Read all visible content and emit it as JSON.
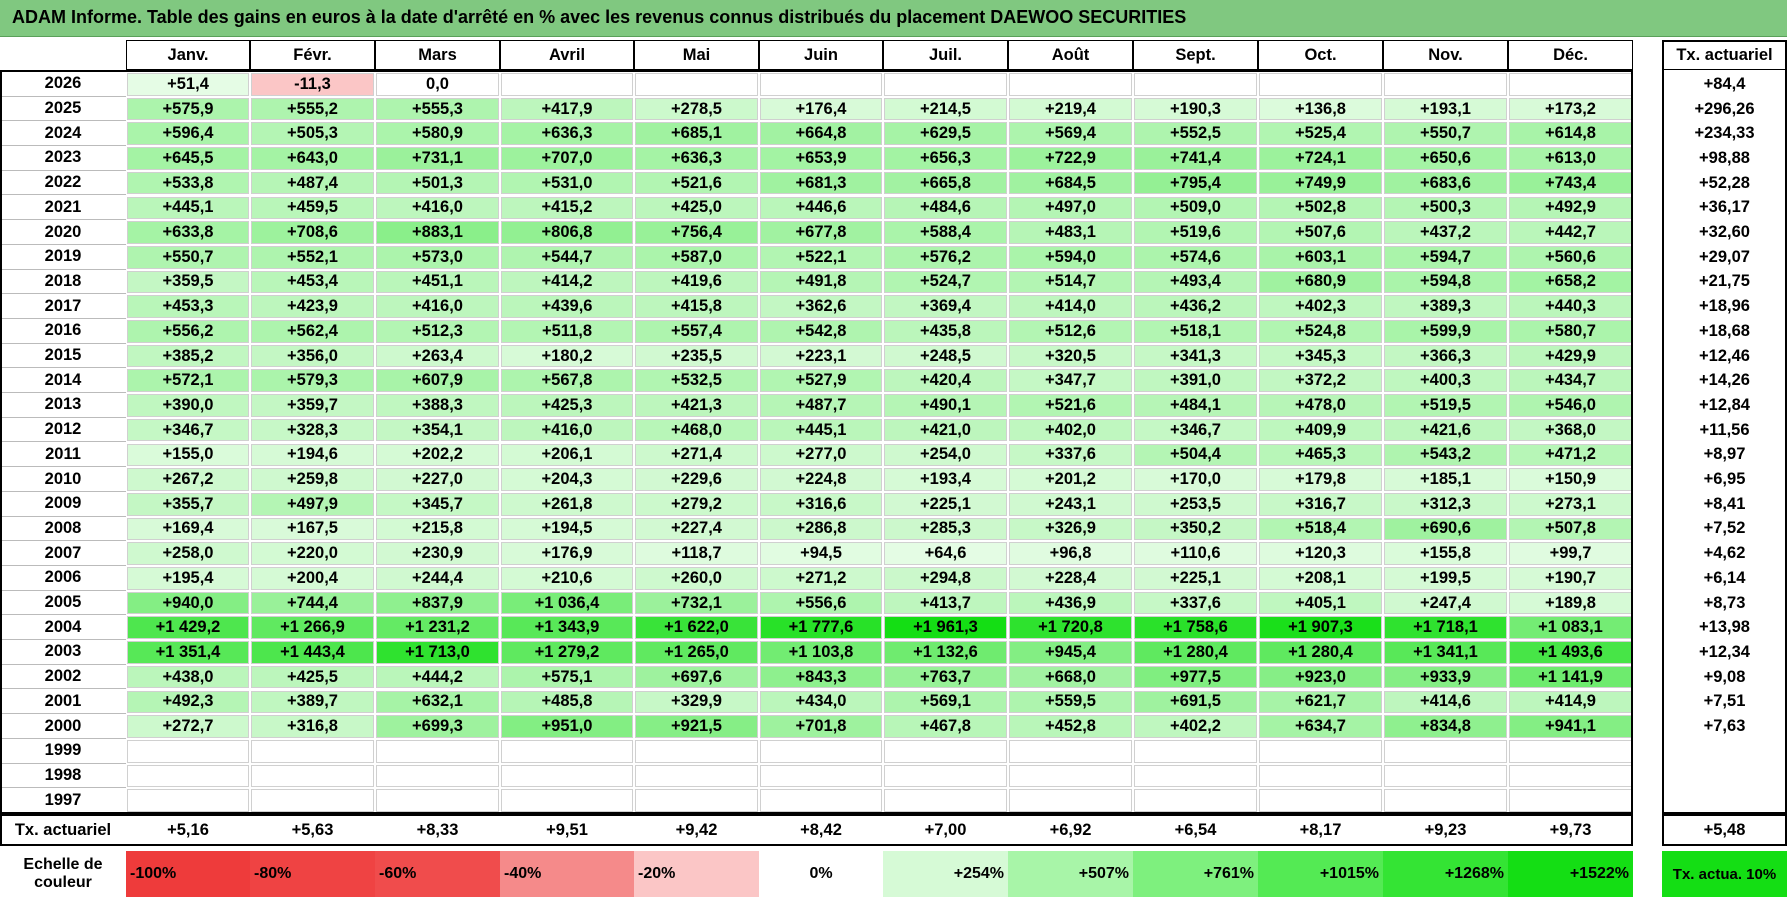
{
  "title": "ADAM Informe. Table des gains en euros à la date d'arrêté en % avec les revenus connus distribués du placement DAEWOO SECURITIES",
  "months": [
    "Janv.",
    "Févr.",
    "Mars",
    "Avril",
    "Mai",
    "Juin",
    "Juil.",
    "Août",
    "Sept.",
    "Oct.",
    "Nov.",
    "Déc."
  ],
  "tx_header": "Tx. actuariel",
  "rows": [
    {
      "year": "2026",
      "values": [
        "+51,4",
        "-11,3",
        "0,0",
        "",
        "",
        "",
        "",
        "",
        "",
        "",
        "",
        ""
      ],
      "tx": "+84,4"
    },
    {
      "year": "2025",
      "values": [
        "+575,9",
        "+555,2",
        "+555,3",
        "+417,9",
        "+278,5",
        "+176,4",
        "+214,5",
        "+219,4",
        "+190,3",
        "+136,8",
        "+193,1",
        "+173,2"
      ],
      "tx": "+296,26"
    },
    {
      "year": "2024",
      "values": [
        "+596,4",
        "+505,3",
        "+580,9",
        "+636,3",
        "+685,1",
        "+664,8",
        "+629,5",
        "+569,4",
        "+552,5",
        "+525,4",
        "+550,7",
        "+614,8"
      ],
      "tx": "+234,33"
    },
    {
      "year": "2023",
      "values": [
        "+645,5",
        "+643,0",
        "+731,1",
        "+707,0",
        "+636,3",
        "+653,9",
        "+656,3",
        "+722,9",
        "+741,4",
        "+724,1",
        "+650,6",
        "+613,0"
      ],
      "tx": "+98,88"
    },
    {
      "year": "2022",
      "values": [
        "+533,8",
        "+487,4",
        "+501,3",
        "+531,0",
        "+521,6",
        "+681,3",
        "+665,8",
        "+684,5",
        "+795,4",
        "+749,9",
        "+683,6",
        "+743,4"
      ],
      "tx": "+52,28"
    },
    {
      "year": "2021",
      "values": [
        "+445,1",
        "+459,5",
        "+416,0",
        "+415,2",
        "+425,0",
        "+446,6",
        "+484,6",
        "+497,0",
        "+509,0",
        "+502,8",
        "+500,3",
        "+492,9"
      ],
      "tx": "+36,17"
    },
    {
      "year": "2020",
      "values": [
        "+633,8",
        "+708,6",
        "+883,1",
        "+806,8",
        "+756,4",
        "+677,8",
        "+588,4",
        "+483,1",
        "+519,6",
        "+507,6",
        "+437,2",
        "+442,7"
      ],
      "tx": "+32,60"
    },
    {
      "year": "2019",
      "values": [
        "+550,7",
        "+552,1",
        "+573,0",
        "+544,7",
        "+587,0",
        "+522,1",
        "+576,2",
        "+594,0",
        "+574,6",
        "+603,1",
        "+594,7",
        "+560,6"
      ],
      "tx": "+29,07"
    },
    {
      "year": "2018",
      "values": [
        "+359,5",
        "+453,4",
        "+451,1",
        "+414,2",
        "+419,6",
        "+491,8",
        "+524,7",
        "+514,7",
        "+493,4",
        "+680,9",
        "+594,8",
        "+658,2"
      ],
      "tx": "+21,75"
    },
    {
      "year": "2017",
      "values": [
        "+453,3",
        "+423,9",
        "+416,0",
        "+439,6",
        "+415,8",
        "+362,6",
        "+369,4",
        "+414,0",
        "+436,2",
        "+402,3",
        "+389,3",
        "+440,3"
      ],
      "tx": "+18,96"
    },
    {
      "year": "2016",
      "values": [
        "+556,2",
        "+562,4",
        "+512,3",
        "+511,8",
        "+557,4",
        "+542,8",
        "+435,8",
        "+512,6",
        "+518,1",
        "+524,8",
        "+599,9",
        "+580,7"
      ],
      "tx": "+18,68"
    },
    {
      "year": "2015",
      "values": [
        "+385,2",
        "+356,0",
        "+263,4",
        "+180,2",
        "+235,5",
        "+223,1",
        "+248,5",
        "+320,5",
        "+341,3",
        "+345,3",
        "+366,3",
        "+429,9"
      ],
      "tx": "+12,46"
    },
    {
      "year": "2014",
      "values": [
        "+572,1",
        "+579,3",
        "+607,9",
        "+567,8",
        "+532,5",
        "+527,9",
        "+420,4",
        "+347,7",
        "+391,0",
        "+372,2",
        "+400,3",
        "+434,7"
      ],
      "tx": "+14,26"
    },
    {
      "year": "2013",
      "values": [
        "+390,0",
        "+359,7",
        "+388,3",
        "+425,3",
        "+421,3",
        "+487,7",
        "+490,1",
        "+521,6",
        "+484,1",
        "+478,0",
        "+519,5",
        "+546,0"
      ],
      "tx": "+12,84"
    },
    {
      "year": "2012",
      "values": [
        "+346,7",
        "+328,3",
        "+354,1",
        "+416,0",
        "+468,0",
        "+445,1",
        "+421,0",
        "+402,0",
        "+346,7",
        "+409,9",
        "+421,6",
        "+368,0"
      ],
      "tx": "+11,56"
    },
    {
      "year": "2011",
      "values": [
        "+155,0",
        "+194,6",
        "+202,2",
        "+206,1",
        "+271,4",
        "+277,0",
        "+254,0",
        "+337,6",
        "+504,4",
        "+465,3",
        "+543,2",
        "+471,2"
      ],
      "tx": "+8,97"
    },
    {
      "year": "2010",
      "values": [
        "+267,2",
        "+259,8",
        "+227,0",
        "+204,3",
        "+229,6",
        "+224,8",
        "+193,4",
        "+201,2",
        "+170,0",
        "+179,8",
        "+185,1",
        "+150,9"
      ],
      "tx": "+6,95"
    },
    {
      "year": "2009",
      "values": [
        "+355,7",
        "+497,9",
        "+345,7",
        "+261,8",
        "+279,2",
        "+316,6",
        "+225,1",
        "+243,1",
        "+253,5",
        "+316,7",
        "+312,3",
        "+273,1"
      ],
      "tx": "+8,41"
    },
    {
      "year": "2008",
      "values": [
        "+169,4",
        "+167,5",
        "+215,8",
        "+194,5",
        "+227,4",
        "+286,8",
        "+285,3",
        "+326,9",
        "+350,2",
        "+518,4",
        "+690,6",
        "+507,8"
      ],
      "tx": "+7,52"
    },
    {
      "year": "2007",
      "values": [
        "+258,0",
        "+220,0",
        "+230,9",
        "+176,9",
        "+118,7",
        "+94,5",
        "+64,6",
        "+96,8",
        "+110,6",
        "+120,3",
        "+155,8",
        "+99,7"
      ],
      "tx": "+4,62"
    },
    {
      "year": "2006",
      "values": [
        "+195,4",
        "+200,4",
        "+244,4",
        "+210,6",
        "+260,0",
        "+271,2",
        "+294,8",
        "+228,4",
        "+225,1",
        "+208,1",
        "+199,5",
        "+190,7"
      ],
      "tx": "+6,14"
    },
    {
      "year": "2005",
      "values": [
        "+940,0",
        "+744,4",
        "+837,9",
        "+1 036,4",
        "+732,1",
        "+556,6",
        "+413,7",
        "+436,9",
        "+337,6",
        "+405,1",
        "+247,4",
        "+189,8"
      ],
      "tx": "+8,73"
    },
    {
      "year": "2004",
      "values": [
        "+1 429,2",
        "+1 266,9",
        "+1 231,2",
        "+1 343,9",
        "+1 622,0",
        "+1 777,6",
        "+1 961,3",
        "+1 720,8",
        "+1 758,6",
        "+1 907,3",
        "+1 718,1",
        "+1 083,1"
      ],
      "tx": "+13,98"
    },
    {
      "year": "2003",
      "values": [
        "+1 351,4",
        "+1 443,4",
        "+1 713,0",
        "+1 279,2",
        "+1 265,0",
        "+1 103,8",
        "+1 132,6",
        "+945,4",
        "+1 280,4",
        "+1 280,4",
        "+1 341,1",
        "+1 493,6"
      ],
      "tx": "+12,34"
    },
    {
      "year": "2002",
      "values": [
        "+438,0",
        "+425,5",
        "+444,2",
        "+575,1",
        "+697,6",
        "+843,3",
        "+763,7",
        "+668,0",
        "+977,5",
        "+923,0",
        "+933,9",
        "+1 141,9"
      ],
      "tx": "+9,08"
    },
    {
      "year": "2001",
      "values": [
        "+492,3",
        "+389,7",
        "+632,1",
        "+485,8",
        "+329,9",
        "+434,0",
        "+569,1",
        "+559,5",
        "+691,5",
        "+621,7",
        "+414,6",
        "+414,9"
      ],
      "tx": "+7,51"
    },
    {
      "year": "2000",
      "values": [
        "+272,7",
        "+316,8",
        "+699,3",
        "+951,0",
        "+921,5",
        "+701,8",
        "+467,8",
        "+452,8",
        "+402,2",
        "+634,7",
        "+834,8",
        "+941,1"
      ],
      "tx": "+7,63"
    },
    {
      "year": "1999",
      "values": [
        "",
        "",
        "",
        "",
        "",
        "",
        "",
        "",
        "",
        "",
        "",
        ""
      ],
      "tx": ""
    },
    {
      "year": "1998",
      "values": [
        "",
        "",
        "",
        "",
        "",
        "",
        "",
        "",
        "",
        "",
        "",
        ""
      ],
      "tx": ""
    },
    {
      "year": "1997",
      "values": [
        "",
        "",
        "",
        "",
        "",
        "",
        "",
        "",
        "",
        "",
        "",
        ""
      ],
      "tx": ""
    }
  ],
  "footer": {
    "label": "Tx. actuariel",
    "values": [
      "+5,16",
      "+5,63",
      "+8,33",
      "+9,51",
      "+9,42",
      "+8,42",
      "+7,00",
      "+6,92",
      "+6,54",
      "+8,17",
      "+9,23",
      "+9,73"
    ],
    "tx": "+5,48"
  },
  "legend": {
    "label": "Echelle de couleur",
    "items": [
      {
        "text": "-100%",
        "color": "#ee3b3b",
        "align": "left"
      },
      {
        "text": "-80%",
        "color": "#ef4343",
        "align": "left"
      },
      {
        "text": "-60%",
        "color": "#f04c4c",
        "align": "left"
      },
      {
        "text": "-40%",
        "color": "#f58a8a",
        "align": "left"
      },
      {
        "text": "-20%",
        "color": "#fbc6c6",
        "align": "left"
      },
      {
        "text": "0%",
        "color": "#ffffff",
        "align": "center"
      },
      {
        "text": "+254%",
        "color": "#d6fad6",
        "align": "right"
      },
      {
        "text": "+507%",
        "color": "#a8f5a8",
        "align": "right"
      },
      {
        "text": "+761%",
        "color": "#7ef07e",
        "align": "right"
      },
      {
        "text": "+1015%",
        "color": "#54ea54",
        "align": "right"
      },
      {
        "text": "+1268%",
        "color": "#34e434",
        "align": "right"
      },
      {
        "text": "+1522%",
        "color": "#14de14",
        "align": "right"
      }
    ],
    "tx_label": "Tx. actua. 10%",
    "tx_color": "#14de14"
  },
  "colors": {
    "title_bg": "#80c880",
    "negative": "#fbc6c6",
    "zero": "#ffffff"
  },
  "chart_data": {
    "type": "heatmap",
    "title": "ADAM Informe. Table des gains en euros à la date d'arrêté en % avec les revenus connus distribués du placement DAEWOO SECURITIES",
    "x_categories": [
      "Janv.",
      "Févr.",
      "Mars",
      "Avril",
      "Mai",
      "Juin",
      "Juil.",
      "Août",
      "Sept.",
      "Oct.",
      "Nov.",
      "Déc."
    ],
    "y_categories": [
      "2026",
      "2025",
      "2024",
      "2023",
      "2022",
      "2021",
      "2020",
      "2019",
      "2018",
      "2017",
      "2016",
      "2015",
      "2014",
      "2013",
      "2012",
      "2011",
      "2010",
      "2009",
      "2008",
      "2007",
      "2006",
      "2005",
      "2004",
      "2003",
      "2002",
      "2001",
      "2000",
      "1999",
      "1998",
      "1997"
    ],
    "color_scale": [
      -100,
      -80,
      -60,
      -40,
      -20,
      0,
      254,
      507,
      761,
      1015,
      1268,
      1522
    ]
  }
}
